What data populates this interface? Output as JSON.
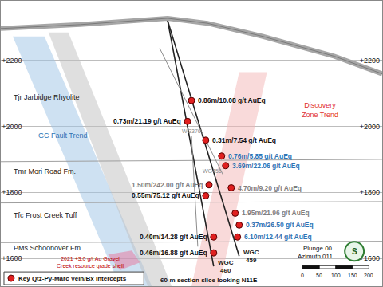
{
  "chart_data": {
    "type": "cross_section",
    "xlim": [
      0,
      1152
    ],
    "ylim": [
      1516,
      2380
    ],
    "yticks": [
      {
        "value": 1600,
        "label": "+1600"
      },
      {
        "value": 1800,
        "label": "+1800"
      },
      {
        "value": 2000,
        "label": "+2000"
      },
      {
        "value": 2200,
        "label": "+2200"
      }
    ],
    "grid": true,
    "tick_labels": "y",
    "legend": "lower left",
    "topography": {
      "color": "#a6a6a6",
      "x": [
        0,
        240,
        504,
        624,
        792,
        1008,
        1152
      ],
      "y": [
        2296,
        2308,
        2327,
        2312,
        2272,
        2212,
        2159
      ]
    },
    "contacts": [
      {
        "x": [
          0,
          1152
        ],
        "y": [
          1893,
          1900
        ]
      },
      {
        "x": [
          0,
          1152
        ],
        "y": [
          1768,
          1772
        ]
      },
      {
        "x": [
          0,
          1152
        ],
        "y": [
          1648,
          1652
        ]
      }
    ],
    "formations": [
      "Tjr Jarbidge Rhyolite",
      "Tmr Mori Road Fm.",
      "Tfc Frost Creek Tuff",
      "PMs Schoonover Fm."
    ],
    "zones": [
      {
        "label": [
          "GC Fault Trend"
        ],
        "color": "#9dc3e6",
        "x": [
          36,
          132,
          456,
          360
        ],
        "y": [
          2272,
          2272,
          1516,
          1516
        ]
      },
      {
        "color": "#bfbfbf",
        "x": [
          144,
          204,
          516,
          444
        ],
        "y": [
          2284,
          2284,
          1516,
          1516
        ]
      },
      {
        "label": [
          "Discovery",
          "Zone Trend"
        ],
        "color": "#f4b6b6",
        "x": [
          720,
          804,
          660,
          576
        ],
        "y": [
          2164,
          2164,
          1516,
          1516
        ]
      },
      {
        "label": [
          "2021 +3.0 g/t Au Gravel",
          "Creek resource grade shell"
        ],
        "color": "#e8739a",
        "x": [
          324,
          396,
          420,
          360
        ],
        "y": [
          1612,
          1624,
          1588,
          1564
        ]
      }
    ],
    "holes": [
      {
        "label": "WGC 460",
        "color": "#222222",
        "x": [
          504,
          643
        ],
        "y": [
          2320,
          1576
        ]
      },
      {
        "label": "WGC 459",
        "color": "#222222",
        "x": [
          504,
          720
        ],
        "y": [
          2320,
          1607
        ]
      },
      {
        "label": "WG456",
        "color": "#8c8c8c",
        "x": [
          480,
          672
        ],
        "y": [
          2236,
          1852
        ]
      },
      {
        "label": "WG376",
        "color": "#8c8c8c",
        "x": [
          576,
          595
        ],
        "y": [
          1972,
          1636
        ]
      }
    ],
    "intercepts": [
      {
        "label": "0.86m/10.08 g/t AuEq",
        "color": "#111111",
        "x": 576,
        "y": 2078
      },
      {
        "label": "0.73m/21.19 g/t AuEq",
        "color": "#111111",
        "x": 564,
        "y": 2015
      },
      {
        "label": "0.31m/7.54 g/t AuEq",
        "color": "#111111",
        "x": 619,
        "y": 1958
      },
      {
        "label": "0.76m/5.85 g/t AuEq",
        "color": "#2e75b6",
        "x": 667,
        "y": 1910
      },
      {
        "label": "3.69m/22.06 g/t AuEq",
        "color": "#2e75b6",
        "x": 679,
        "y": 1881
      },
      {
        "label": "4.70m/9.20 g/t AuEq",
        "color": "#7f7f7f",
        "x": 696,
        "y": 1814
      },
      {
        "label": "1.50m/242.00 g/t AuEq",
        "color": "#7f7f7f",
        "x": 629,
        "y": 1823
      },
      {
        "label": "0.55m/75.12 g/t AuEq",
        "color": "#111111",
        "x": 619,
        "y": 1790
      },
      {
        "label": "1.95m/21.96 g/t AuEq",
        "color": "#7f7f7f",
        "x": 708,
        "y": 1737
      },
      {
        "label": "0.37m/26.50 g/t AuEq",
        "color": "#2e75b6",
        "x": 720,
        "y": 1701
      },
      {
        "label": "6.10m/12.44 g/t AuEq",
        "color": "#2e75b6",
        "x": 715,
        "y": 1665
      },
      {
        "label": "0.40m/14.28 g/t AuEq",
        "color": "#111111",
        "x": 643,
        "y": 1665
      },
      {
        "label": "0.46m/16.88 g/t AuEq",
        "color": "#111111",
        "x": 643,
        "y": 1617
      }
    ],
    "key": {
      "text": "Key Qtz-Py-Marc Vein/Bx Intercepts",
      "color": "#e02020"
    },
    "footer": "60-m section slice looking N11E",
    "view": [
      "Plunge 00",
      "Azimuth 011"
    ],
    "compass": "S",
    "scale_bar": [
      0,
      50,
      100,
      150,
      200
    ]
  }
}
